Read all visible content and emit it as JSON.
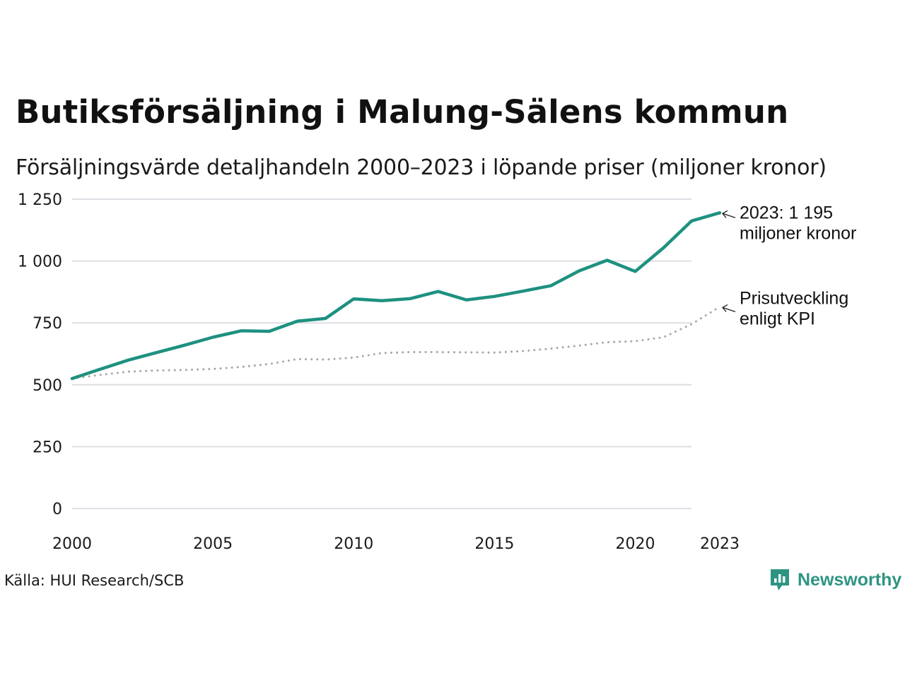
{
  "title": "Butiksförsäljning i Malung-Sälens kommun",
  "subtitle": "Försäljningsvärde detaljhandeln 2000–2023 i löpande priser (miljoner kronor)",
  "source": "Källa: HUI Research/SCB",
  "brand": {
    "name": "Newsworthy",
    "icon": "newsworthy-logo-icon",
    "color": "#2e9482"
  },
  "chart_data": {
    "type": "line",
    "title": "Butiksförsäljning i Malung-Sälens kommun",
    "subtitle": "Försäljningsvärde detaljhandeln 2000–2023 i löpande priser (miljoner kronor)",
    "xlabel": "",
    "ylabel": "",
    "x": [
      2000,
      2001,
      2002,
      2003,
      2004,
      2005,
      2006,
      2007,
      2008,
      2009,
      2010,
      2011,
      2012,
      2013,
      2014,
      2015,
      2016,
      2017,
      2018,
      2019,
      2020,
      2021,
      2022,
      2023
    ],
    "xlim": [
      2000,
      2023
    ],
    "ylim": [
      0,
      1250
    ],
    "grid": true,
    "x_ticks": [
      {
        "value": 2000,
        "label": "2000"
      },
      {
        "value": 2005,
        "label": "2005"
      },
      {
        "value": 2010,
        "label": "2010"
      },
      {
        "value": 2015,
        "label": "2015"
      },
      {
        "value": 2020,
        "label": "2020"
      },
      {
        "value": 2023,
        "label": "2023"
      }
    ],
    "y_ticks": [
      {
        "value": 0,
        "label": "0"
      },
      {
        "value": 250,
        "label": "250"
      },
      {
        "value": 500,
        "label": "500"
      },
      {
        "value": 750,
        "label": "750"
      },
      {
        "value": 1000,
        "label": "1 000"
      },
      {
        "value": 1250,
        "label": "1 250"
      }
    ],
    "series": [
      {
        "name": "Försäljningsvärde",
        "style": "solid",
        "color": "#1e9180",
        "values": [
          525,
          563,
          600,
          630,
          660,
          692,
          718,
          716,
          757,
          768,
          847,
          840,
          848,
          877,
          843,
          857,
          878,
          900,
          960,
          1003,
          958,
          1053,
          1162,
          1195
        ]
      },
      {
        "name": "Prisutveckling enligt KPI",
        "style": "dotted",
        "color": "#a8a8a8",
        "values": [
          525,
          540,
          553,
          558,
          560,
          564,
          572,
          584,
          604,
          602,
          610,
          628,
          632,
          632,
          631,
          630,
          636,
          646,
          658,
          672,
          676,
          692,
          745,
          815
        ]
      }
    ],
    "annotations": [
      {
        "series": 0,
        "year": 2023,
        "lines": [
          "2023: 1 195",
          "miljoner kronor"
        ]
      },
      {
        "series": 1,
        "year": 2023,
        "lines": [
          "Prisutveckling",
          "enligt KPI"
        ]
      }
    ]
  }
}
